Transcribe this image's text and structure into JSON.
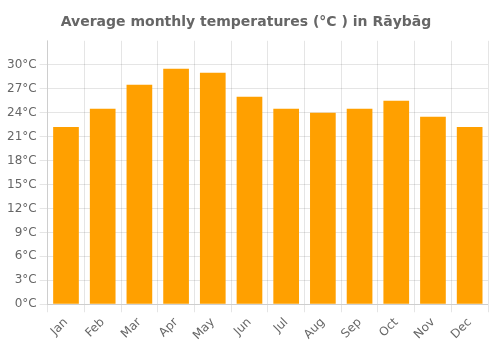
{
  "chart_data": {
    "type": "bar",
    "title": "Average monthly temperatures (°C ) in Rāybāg",
    "categories": [
      "Jan",
      "Feb",
      "Mar",
      "Apr",
      "May",
      "Jun",
      "Jul",
      "Aug",
      "Sep",
      "Oct",
      "Nov",
      "Dec"
    ],
    "values": [
      22.2,
      24.5,
      27.5,
      29.5,
      29.0,
      26.0,
      24.5,
      24.0,
      24.5,
      25.5,
      23.5,
      22.2
    ],
    "color": "#FFA000",
    "ylim": [
      0,
      33
    ],
    "yticks": [
      {
        "value": 0,
        "label": "0°C"
      },
      {
        "value": 3,
        "label": "3°C"
      },
      {
        "value": 6,
        "label": "6°C"
      },
      {
        "value": 9,
        "label": "9°C"
      },
      {
        "value": 12,
        "label": "12°C"
      },
      {
        "value": 15,
        "label": "15°C"
      },
      {
        "value": 18,
        "label": "18°C"
      },
      {
        "value": 21,
        "label": "21°C"
      },
      {
        "value": 24,
        "label": "24°C"
      },
      {
        "value": 27,
        "label": "27°C"
      },
      {
        "value": 30,
        "label": "30°C"
      }
    ],
    "grid": true
  }
}
